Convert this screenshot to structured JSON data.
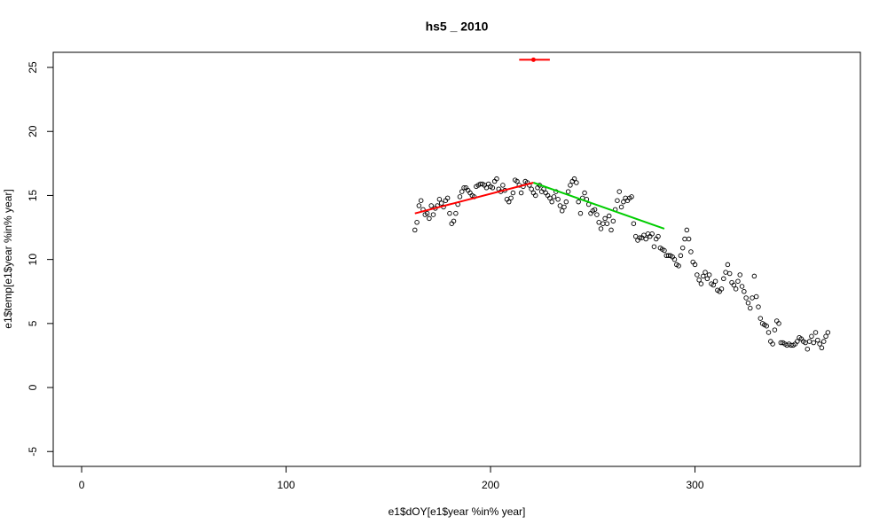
{
  "chart_data": {
    "type": "scatter",
    "title": "hs5 _ 2010",
    "xlabel": "e1$dOY[e1$year %in% year]",
    "ylabel": "e1$temp[e1$year %in% year]",
    "xlim": [
      -13.9,
      380.9
    ],
    "ylim": [
      -6.16,
      26.18
    ],
    "xticks": [
      0,
      100,
      200,
      300
    ],
    "yticks": [
      -5,
      0,
      5,
      10,
      15,
      20,
      25
    ],
    "color": "#000000",
    "x": [
      163,
      164,
      165,
      166,
      167,
      168,
      169,
      170,
      171,
      172,
      173,
      174,
      175,
      176,
      177,
      178,
      179,
      180,
      181,
      182,
      183,
      184,
      185,
      186,
      187,
      188,
      189,
      190,
      191,
      192,
      193,
      194,
      195,
      196,
      197,
      198,
      199,
      200,
      201,
      202,
      203,
      204,
      205,
      206,
      207,
      208,
      209,
      210,
      211,
      212,
      213,
      214,
      215,
      216,
      217,
      218,
      219,
      220,
      221,
      222,
      223,
      224,
      225,
      226,
      227,
      228,
      229,
      230,
      231,
      232,
      233,
      234,
      235,
      236,
      237,
      238,
      239,
      240,
      241,
      242,
      243,
      244,
      245,
      246,
      247,
      248,
      249,
      250,
      251,
      252,
      253,
      254,
      255,
      256,
      257,
      258,
      259,
      260,
      261,
      262,
      263,
      264,
      265,
      266,
      267,
      268,
      269,
      270,
      271,
      272,
      273,
      274,
      275,
      276,
      277,
      278,
      279,
      280,
      281,
      282,
      283,
      284,
      285,
      286,
      287,
      288,
      289,
      290,
      291,
      292,
      293,
      294,
      295,
      296,
      297,
      298,
      299,
      300,
      301,
      302,
      303,
      304,
      305,
      306,
      307,
      308,
      309,
      310,
      311,
      312,
      313,
      314,
      315,
      316,
      317,
      318,
      319,
      320,
      321,
      322,
      323,
      324,
      325,
      326,
      327,
      328,
      329,
      330,
      331,
      332,
      333,
      334,
      335,
      336,
      337,
      338,
      339,
      340,
      341,
      342,
      343,
      344,
      345,
      346,
      347,
      348,
      349,
      350,
      351,
      352,
      353,
      354,
      355,
      356,
      357,
      358,
      359,
      360,
      361,
      362,
      363,
      364,
      365
    ],
    "values": [
      12.3,
      12.9,
      14.2,
      14.6,
      13.9,
      13.5,
      13.6,
      13.2,
      14.2,
      13.5,
      14.0,
      14.2,
      14.7,
      14.4,
      14.1,
      14.6,
      14.8,
      13.6,
      12.8,
      13.0,
      13.6,
      14.3,
      14.9,
      15.3,
      15.6,
      15.6,
      15.4,
      15.2,
      15.0,
      14.9,
      15.7,
      15.8,
      15.9,
      15.9,
      15.8,
      15.6,
      15.9,
      15.7,
      15.6,
      16.1,
      16.3,
      15.5,
      15.3,
      15.8,
      15.4,
      14.7,
      14.5,
      14.8,
      15.2,
      16.2,
      16.1,
      15.8,
      15.2,
      15.7,
      16.1,
      16.0,
      15.8,
      15.5,
      15.2,
      15.0,
      15.6,
      15.8,
      15.3,
      15.5,
      15.2,
      15.0,
      14.8,
      14.5,
      14.9,
      15.3,
      14.7,
      14.2,
      13.8,
      14.1,
      14.5,
      15.3,
      15.8,
      16.1,
      16.3,
      16.0,
      14.5,
      13.6,
      14.8,
      15.2,
      14.7,
      14.3,
      13.6,
      13.8,
      13.9,
      13.5,
      12.9,
      12.4,
      12.8,
      13.2,
      12.8,
      13.4,
      12.3,
      13.0,
      13.9,
      14.6,
      15.3,
      14.1,
      14.5,
      14.8,
      14.6,
      14.8,
      14.9,
      12.8,
      11.8,
      11.5,
      11.7,
      11.7,
      11.9,
      11.6,
      12.0,
      11.8,
      12.0,
      11.0,
      11.6,
      11.8,
      10.9,
      10.8,
      10.7,
      10.3,
      10.3,
      10.3,
      10.2,
      10.0,
      9.6,
      9.5,
      10.3,
      10.9,
      11.6,
      12.3,
      11.6,
      10.6,
      9.8,
      9.6,
      8.8,
      8.4,
      8.1,
      8.7,
      9.0,
      8.5,
      8.8,
      8.1,
      8.0,
      8.3,
      7.6,
      7.5,
      7.7,
      8.5,
      9.0,
      9.6,
      8.9,
      8.2,
      8.0,
      7.7,
      8.3,
      8.8,
      7.9,
      7.5,
      7.0,
      6.6,
      6.2,
      7.0,
      8.7,
      7.1,
      6.3,
      5.4,
      5.0,
      4.9,
      4.8,
      4.3,
      3.6,
      3.4,
      4.5,
      5.2,
      5.0,
      3.5,
      3.5,
      3.4,
      3.3,
      3.4,
      3.3,
      3.3,
      3.4,
      3.6,
      3.9,
      3.8,
      3.6,
      3.5,
      3.0,
      3.6,
      4.0,
      3.5,
      4.3,
      3.7,
      3.4,
      3.1,
      3.6,
      4.0,
      4.3
    ],
    "fits": [
      {
        "color": "#ff0000",
        "x": [
          163,
          221
        ],
        "values": [
          13.6,
          16.0
        ]
      },
      {
        "color": "#00cd00",
        "x": [
          221,
          285
        ],
        "values": [
          16.0,
          12.4
        ]
      }
    ],
    "breakpoint": {
      "color": "#ff0000",
      "x": 221,
      "y": 25.6,
      "xrange": [
        214,
        229
      ]
    }
  }
}
